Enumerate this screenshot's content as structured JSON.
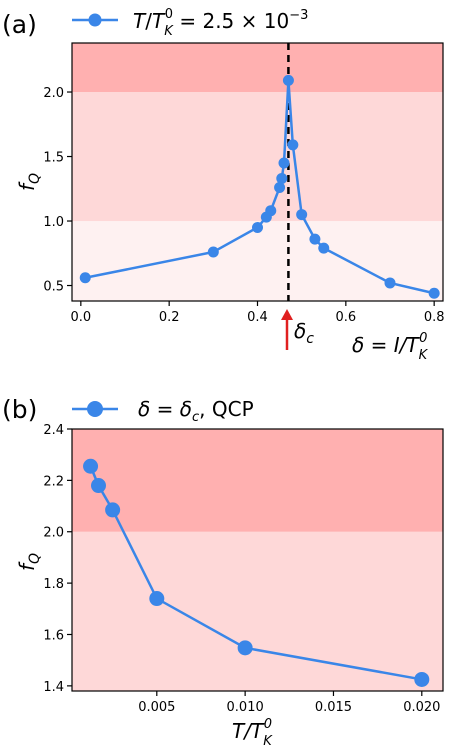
{
  "chart_data": [
    {
      "type": "line",
      "panel_label": "(a)",
      "legend_label": "T/T_K^0 = 2.5 × 10^-3",
      "xlabel": "δ = I/T_K^0",
      "ylabel": "f_Q",
      "xlim": [
        -0.02,
        0.82
      ],
      "ylim": [
        0.38,
        2.38
      ],
      "xticks": [
        0.0,
        0.2,
        0.4,
        0.6,
        0.8
      ],
      "xtick_labels": [
        "0.0",
        "0.2",
        "0.4",
        "0.6",
        "0.8"
      ],
      "yticks": [
        0.5,
        1.0,
        1.5,
        2.0
      ],
      "ytick_labels": [
        "0.5",
        "1.0",
        "1.5",
        "2.0"
      ],
      "grid": false,
      "legend_position": "top-left, above plot",
      "critical_line_x": 0.47,
      "critical_label": "δc",
      "bands": [
        {
          "from": 0.38,
          "to": 1.0,
          "color": "#fef1f1"
        },
        {
          "from": 1.0,
          "to": 2.0,
          "color": "#fed8d8"
        },
        {
          "from": 2.0,
          "to": 2.38,
          "color": "#ffb0b0"
        }
      ],
      "series": [
        {
          "color": "#3a86e8",
          "x": [
            0.01,
            0.3,
            0.4,
            0.42,
            0.43,
            0.45,
            0.455,
            0.46,
            0.47,
            0.48,
            0.5,
            0.53,
            0.55,
            0.7,
            0.8
          ],
          "y": [
            0.56,
            0.76,
            0.95,
            1.03,
            1.08,
            1.26,
            1.33,
            1.45,
            2.09,
            1.59,
            1.05,
            0.86,
            0.79,
            0.52,
            0.44
          ]
        }
      ]
    },
    {
      "type": "line",
      "panel_label": "(b)",
      "legend_label": "δ = δc, QCP",
      "xlabel": "T/T_K^0",
      "ylabel": "f_Q",
      "xlim": [
        0.0002,
        0.0212
      ],
      "ylim": [
        1.38,
        2.4
      ],
      "xticks": [
        0.005,
        0.01,
        0.015,
        0.02
      ],
      "xtick_labels": [
        "0.005",
        "0.010",
        "0.015",
        "0.020"
      ],
      "yticks": [
        1.4,
        1.6,
        1.8,
        2.0,
        2.2,
        2.4
      ],
      "ytick_labels": [
        "1.4",
        "1.6",
        "1.8",
        "2.0",
        "2.2",
        "2.4"
      ],
      "grid": false,
      "legend_position": "top-left, above plot",
      "bands": [
        {
          "from": 1.38,
          "to": 2.0,
          "color": "#fed8d8"
        },
        {
          "from": 2.0,
          "to": 2.4,
          "color": "#ffb0b0"
        }
      ],
      "series": [
        {
          "color": "#3a86e8",
          "x": [
            0.00125,
            0.0017,
            0.0025,
            0.005,
            0.01,
            0.02
          ],
          "y": [
            2.255,
            2.18,
            2.085,
            1.74,
            1.548,
            1.425
          ]
        }
      ]
    }
  ]
}
